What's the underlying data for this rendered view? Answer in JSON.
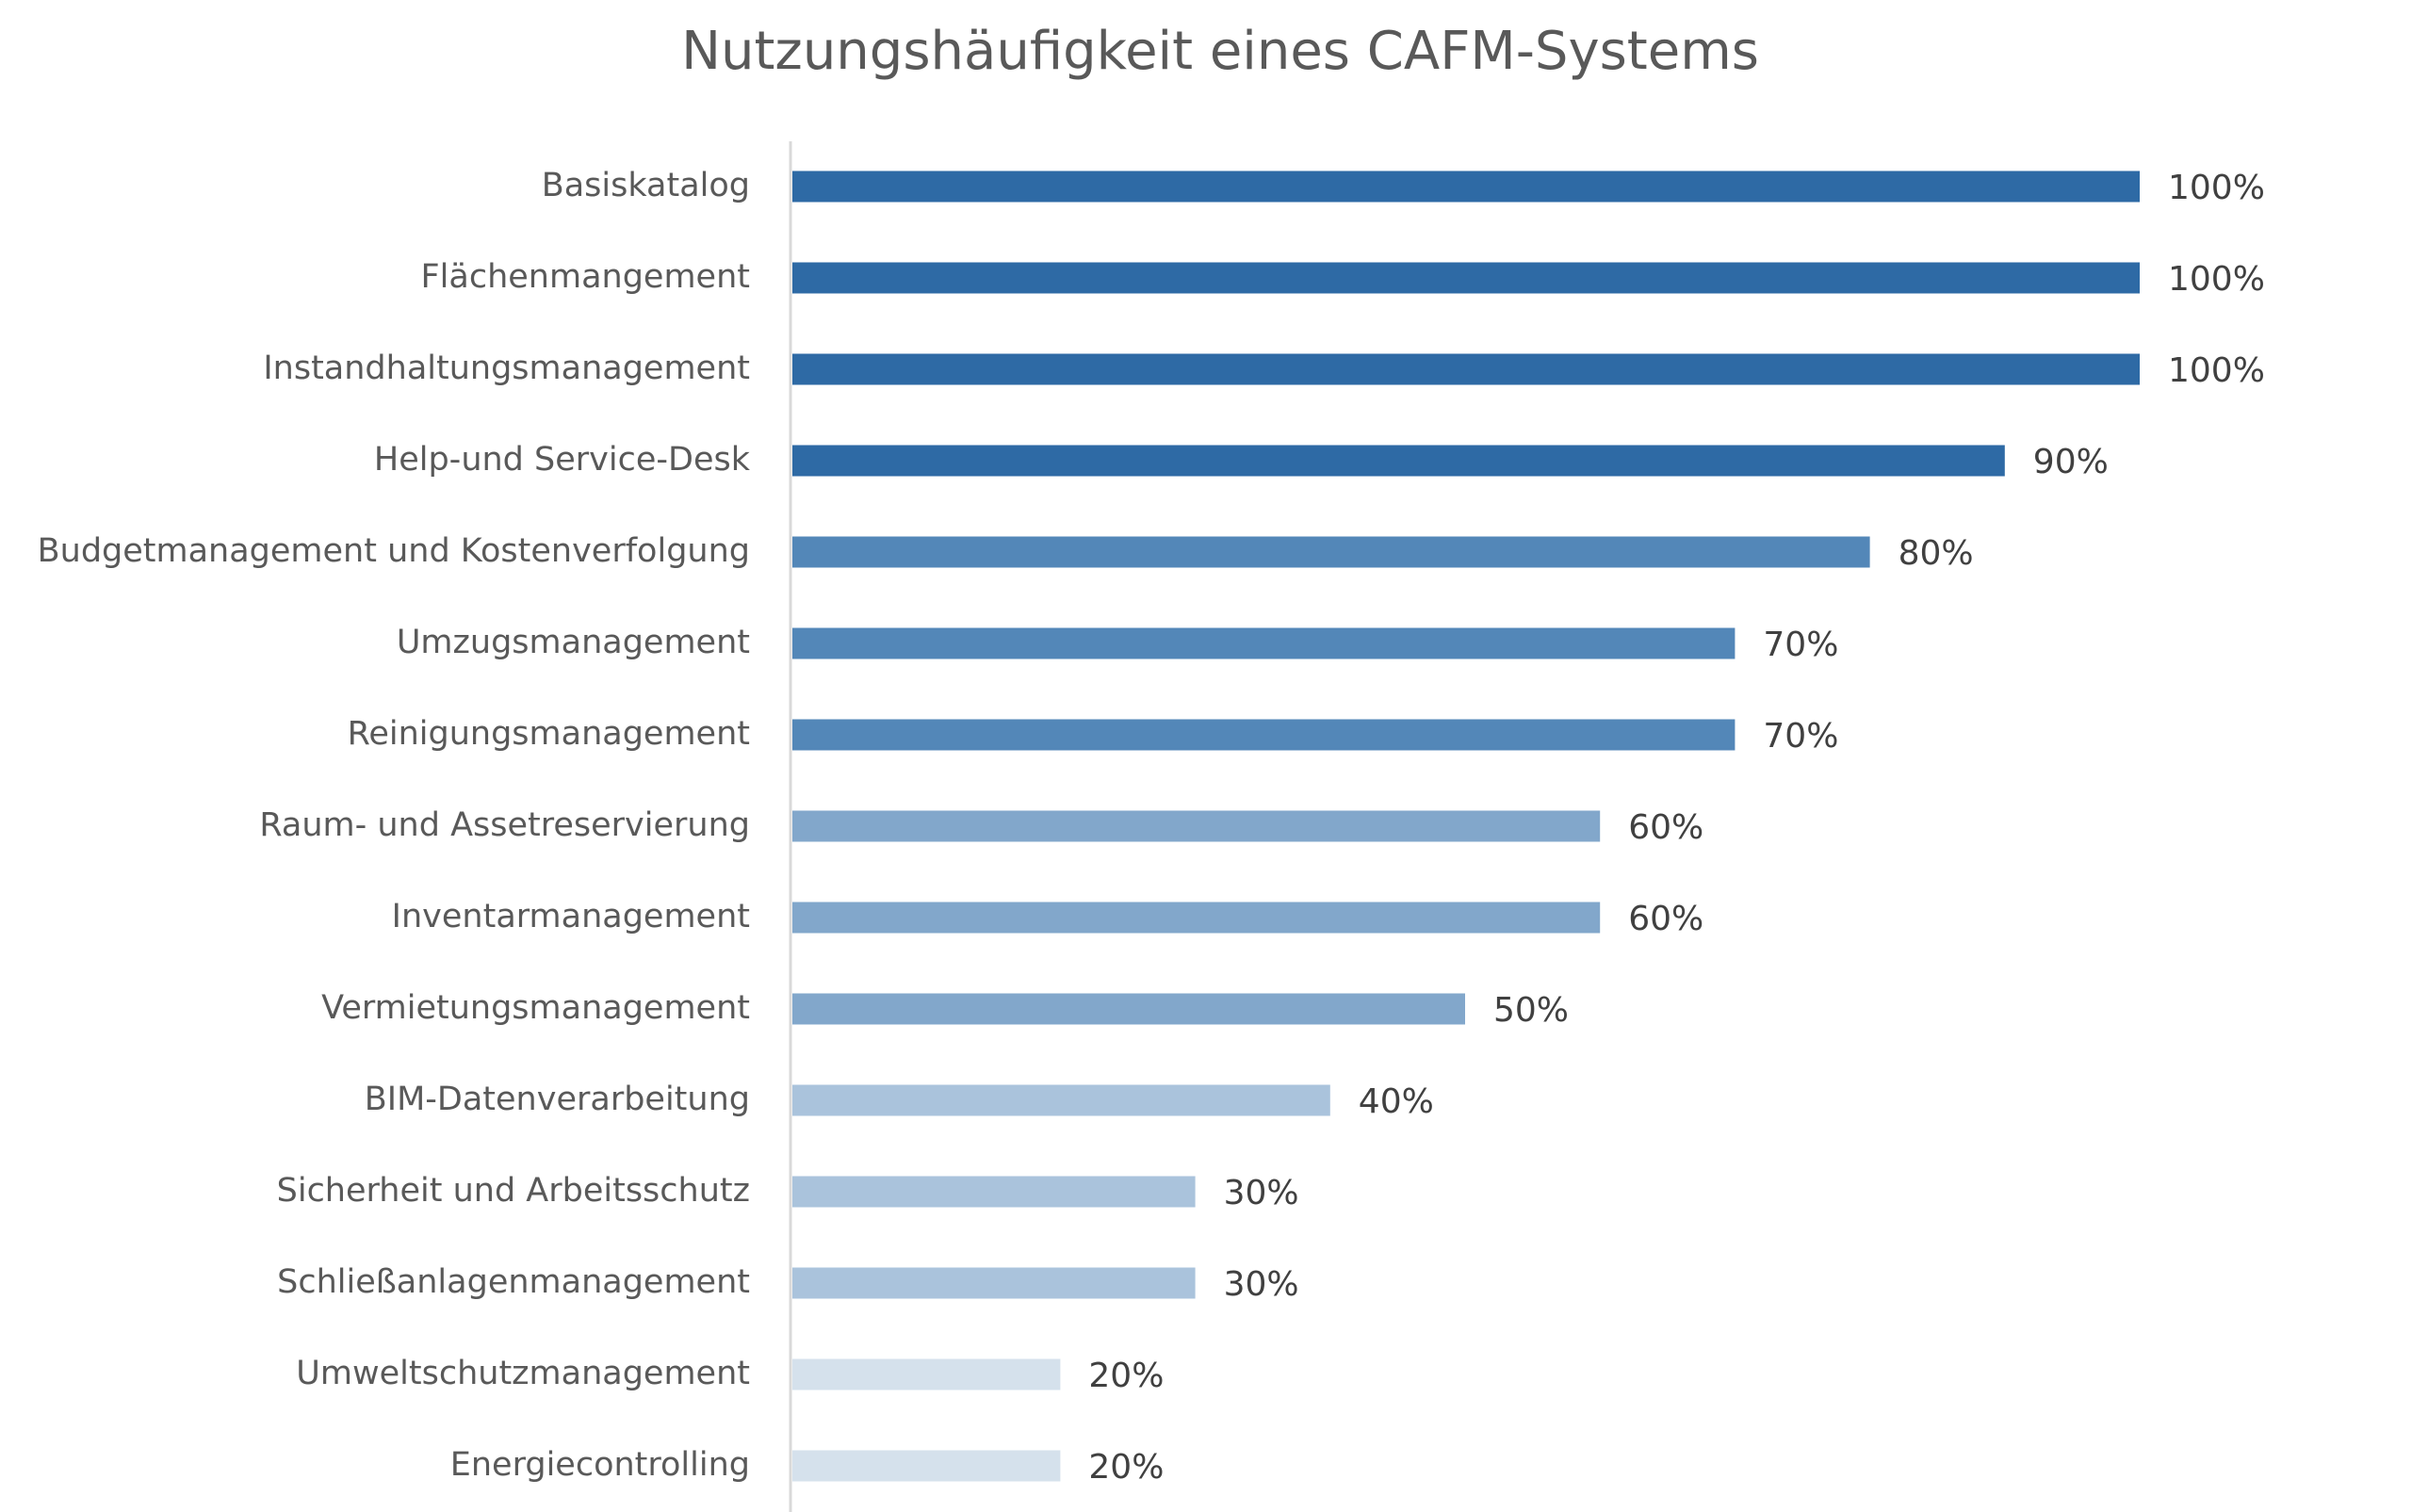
{
  "chart_data": {
    "type": "bar",
    "orientation": "horizontal",
    "title": "Nutzungshäufigkeit eines CAFM-Systems",
    "categories": [
      "Basiskatalog",
      "Flächenmangement",
      "Instandhaltungsmanagement",
      "Help-und Service-Desk",
      "Budgetmanagement und Kostenverfolgung",
      "Umzugsmanagement",
      "Reinigungsmanagement",
      "Raum- und Assetreservierung",
      "Inventarmanagement",
      "Vermietungsmanagement",
      "BIM-Datenverarbeitung",
      "Sicherheit und Arbeitsschutz",
      "Schließanlagenmanagement",
      "Umweltschutzmanagement",
      "Energiecontrolling"
    ],
    "values": [
      100,
      100,
      100,
      90,
      80,
      70,
      70,
      60,
      60,
      50,
      40,
      30,
      30,
      20,
      20
    ],
    "value_labels": [
      "100%",
      "100%",
      "100%",
      "90%",
      "80%",
      "70%",
      "70%",
      "60%",
      "60%",
      "50%",
      "40%",
      "30%",
      "30%",
      "20%",
      "20%"
    ],
    "colors": [
      "#2e6aa5",
      "#2e6aa5",
      "#2e6aa5",
      "#2e6aa5",
      "#5387b8",
      "#5387b8",
      "#5387b8",
      "#82a7cb",
      "#82a7cb",
      "#82a7cb",
      "#aac3dc",
      "#aac3dc",
      "#aac3dc",
      "#d5e1ec",
      "#d5e1ec"
    ]
  }
}
